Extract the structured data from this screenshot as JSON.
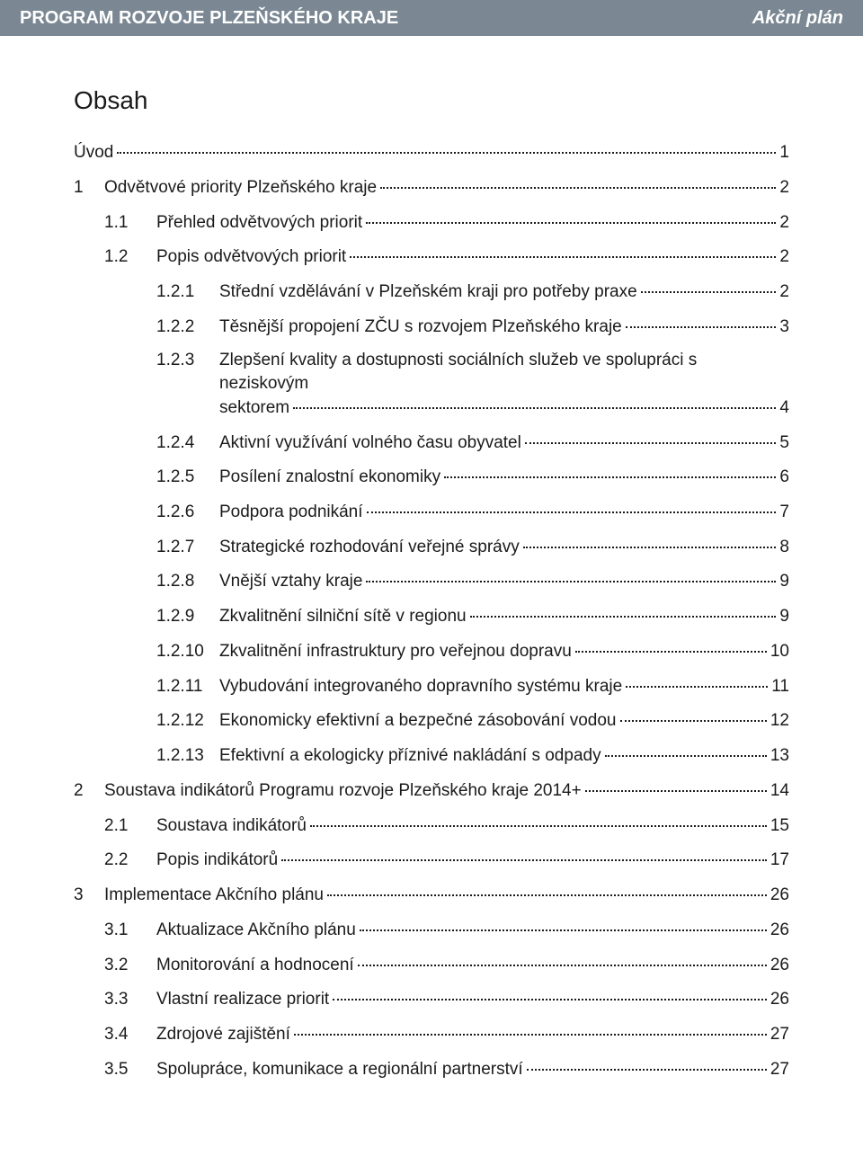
{
  "header": {
    "left": "PROGRAM ROZVOJE PLZEŇSKÉHO KRAJE",
    "right": "Akční plán"
  },
  "title": "Obsah",
  "toc": [
    {
      "level": 0,
      "num": "",
      "label": "Úvod",
      "page": "1",
      "num_gap": false
    },
    {
      "level": 0,
      "num": "1",
      "label": "Odvětvové priority Plzeňského kraje",
      "page": "2"
    },
    {
      "level": 1,
      "num": "1.1",
      "label": "Přehled odvětvových priorit",
      "page": "2"
    },
    {
      "level": 1,
      "num": "1.2",
      "label": "Popis odvětvových priorit",
      "page": "2"
    },
    {
      "level": 2,
      "num": "1.2.1",
      "label": "Střední vzdělávání v Plzeňském kraji pro potřeby praxe",
      "page": "2"
    },
    {
      "level": 2,
      "num": "1.2.2",
      "label": "Těsnější propojení ZČU s rozvojem Plzeňského kraje",
      "page": "3"
    },
    {
      "level": 2,
      "num": "1.2.3",
      "label_line1": "Zlepšení kvality a dostupnosti sociálních služeb ve spolupráci s neziskovým",
      "label_line2": "sektorem",
      "page": "4",
      "multiline": true
    },
    {
      "level": 2,
      "num": "1.2.4",
      "label": "Aktivní využívání volného času obyvatel",
      "page": "5"
    },
    {
      "level": 2,
      "num": "1.2.5",
      "label": "Posílení znalostní ekonomiky",
      "page": "6"
    },
    {
      "level": 2,
      "num": "1.2.6",
      "label": "Podpora podnikání",
      "page": "7"
    },
    {
      "level": 2,
      "num": "1.2.7",
      "label": "Strategické rozhodování veřejné správy",
      "page": "8"
    },
    {
      "level": 2,
      "num": "1.2.8",
      "label": "Vnější vztahy kraje",
      "page": "9"
    },
    {
      "level": 2,
      "num": "1.2.9",
      "label": "Zkvalitnění silniční sítě v regionu",
      "page": "9"
    },
    {
      "level": 2,
      "num": "1.2.10",
      "label": "Zkvalitnění infrastruktury pro veřejnou dopravu",
      "page": "10"
    },
    {
      "level": 2,
      "num": "1.2.11",
      "label": "Vybudování integrovaného dopravního systému kraje",
      "page": "11"
    },
    {
      "level": 2,
      "num": "1.2.12",
      "label": "Ekonomicky efektivní a bezpečné zásobování vodou",
      "page": "12"
    },
    {
      "level": 2,
      "num": "1.2.13",
      "label": "Efektivní a ekologicky příznivé nakládání s odpady",
      "page": "13"
    },
    {
      "level": 0,
      "num": "2",
      "label": "Soustava indikátorů Programu rozvoje Plzeňského kraje 2014+",
      "page": "14"
    },
    {
      "level": 1,
      "num": "2.1",
      "label": "Soustava indikátorů",
      "page": "15"
    },
    {
      "level": 1,
      "num": "2.2",
      "label": "Popis indikátorů",
      "page": "17"
    },
    {
      "level": 0,
      "num": "3",
      "label": "Implementace Akčního plánu",
      "page": "26"
    },
    {
      "level": 1,
      "num": "3.1",
      "label": "Aktualizace Akčního plánu",
      "page": "26"
    },
    {
      "level": 1,
      "num": "3.2",
      "label": "Monitorování a hodnocení",
      "page": "26"
    },
    {
      "level": 1,
      "num": "3.3",
      "label": "Vlastní realizace priorit",
      "page": "26"
    },
    {
      "level": 1,
      "num": "3.4",
      "label": "Zdrojové zajištění",
      "page": "27"
    },
    {
      "level": 1,
      "num": "3.5",
      "label": "Spolupráce, komunikace a regionální partnerství",
      "page": "27"
    }
  ]
}
